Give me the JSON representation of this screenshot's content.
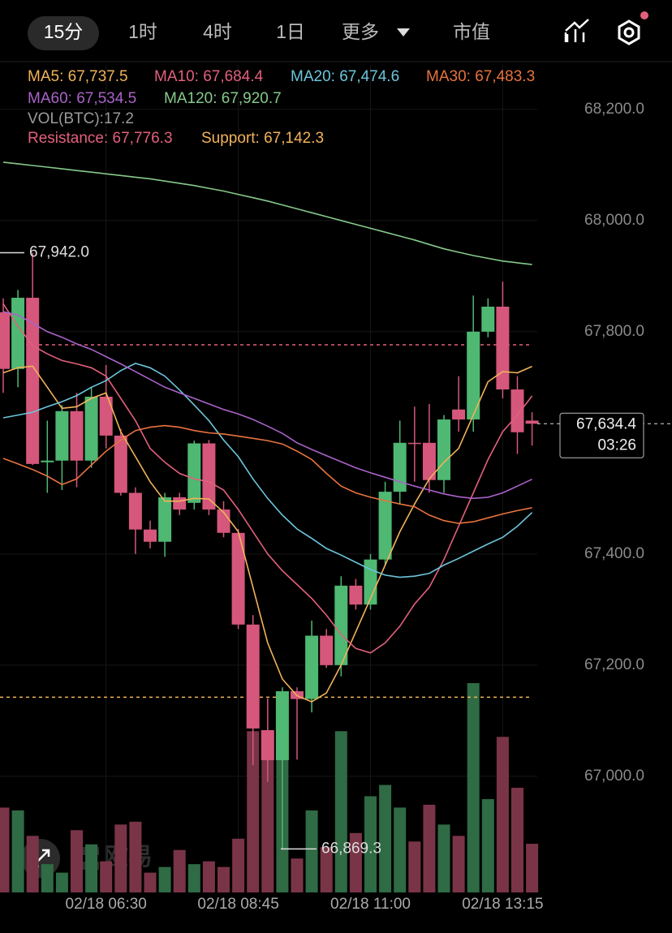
{
  "tabs": [
    {
      "label": "15分",
      "selected": true
    },
    {
      "label": "1时",
      "selected": false
    },
    {
      "label": "4时",
      "selected": false
    },
    {
      "label": "1日",
      "selected": false
    },
    {
      "label": "更多",
      "selected": false
    },
    {
      "label": "市值",
      "selected": false
    }
  ],
  "watermark": "欧易",
  "chart_data": {
    "type": "candlestick",
    "categories": [
      null,
      null,
      null,
      null,
      null,
      null,
      null,
      "02/18 06:30",
      null,
      null,
      null,
      null,
      null,
      null,
      null,
      null,
      "02/18 08:45",
      null,
      null,
      null,
      null,
      null,
      null,
      null,
      null,
      "02/18 11:00",
      null,
      null,
      null,
      null,
      null,
      null,
      null,
      null,
      "02/18 13:15",
      null,
      null
    ],
    "open": [
      67835,
      67733,
      67861,
      67565,
      67568,
      67657,
      67568,
      67683,
      67613,
      67510,
      67444,
      67422,
      67502,
      67492,
      67599,
      67480,
      67438,
      67273,
      67083,
      67029,
      67153,
      67139,
      67253,
      67200,
      67343,
      67309,
      67390,
      67512,
      67600,
      67600,
      67533,
      67660,
      67642,
      67800,
      67845,
      67696,
      67640
    ],
    "high": [
      67860,
      67875,
      67942,
      67640,
      67668,
      67690,
      67700,
      67740,
      67625,
      67520,
      67460,
      67510,
      67510,
      67604,
      67605,
      67495,
      67445,
      67290,
      67140,
      67160,
      67160,
      67280,
      67265,
      67360,
      67355,
      67400,
      67530,
      67640,
      67665,
      67670,
      67650,
      67720,
      67865,
      67860,
      67890,
      67720,
      67655
    ],
    "low": [
      67690,
      67700,
      67560,
      67510,
      67515,
      67520,
      67555,
      67590,
      67505,
      67400,
      67410,
      67395,
      67470,
      67480,
      67470,
      67430,
      67265,
      67020,
      66990,
      66869.3,
      67030,
      67115,
      67195,
      67180,
      67300,
      67300,
      67380,
      67490,
      67530,
      67510,
      67510,
      67620,
      67620,
      67790,
      67680,
      67580,
      67595
    ],
    "close": [
      67733,
      67861,
      67562,
      67568,
      67657,
      67568,
      67683,
      67613,
      67510,
      67444,
      67422,
      67502,
      67480,
      67599,
      67480,
      67438,
      67273,
      67086,
      67029,
      67153,
      67139,
      67253,
      67200,
      67343,
      67309,
      67390,
      67512,
      67600,
      67598,
      67533,
      67642,
      67642,
      67800,
      67845,
      67696,
      67619,
      67634.4
    ],
    "up_color": "#4fb872",
    "down_color": "#d5577b",
    "volume": {
      "label": "VOL(BTC):17.2",
      "values": [
        30,
        29,
        20,
        10,
        7,
        22,
        17,
        11,
        24,
        25,
        7,
        9,
        15,
        10,
        11,
        9,
        19,
        57,
        57,
        47,
        12,
        29,
        16,
        57,
        21,
        34,
        38,
        30,
        18,
        31,
        24,
        20,
        74,
        33,
        55,
        37,
        17.2
      ],
      "up_color": "#2f6b44",
      "down_color": "#7a3448"
    },
    "series": [
      {
        "label": "MA5: 67,737.5",
        "color": "#f2b35a",
        "values": [
          67726,
          67735,
          67738,
          67700,
          67662,
          67665,
          67680,
          67690,
          67620,
          67575,
          67530,
          67495,
          67495,
          67500,
          67499,
          67475,
          67440,
          67340,
          67240,
          67175,
          67145,
          67134,
          67150,
          67200,
          67260,
          67320,
          67380,
          67440,
          67490,
          67535,
          67565,
          67590,
          67650,
          67710,
          67728,
          67726,
          67737.5
        ]
      },
      {
        "label": "MA10: 67,684.4",
        "color": "#e2607c",
        "values": [
          67850,
          67810,
          67775,
          67760,
          67748,
          67742,
          67735,
          67720,
          67680,
          67640,
          67590,
          67565,
          67545,
          67535,
          67530,
          67515,
          67480,
          67440,
          67400,
          67370,
          67345,
          67320,
          67290,
          67255,
          67230,
          67222,
          67240,
          67270,
          67310,
          67340,
          67390,
          67450,
          67510,
          67570,
          67620,
          67650,
          67684.4
        ]
      },
      {
        "label": "MA20: 67,474.6",
        "color": "#6cc6dc",
        "values": [
          67645,
          67650,
          67655,
          67665,
          67674,
          67685,
          67700,
          67712,
          67730,
          67743,
          67735,
          67720,
          67695,
          67668,
          67640,
          67605,
          67575,
          67535,
          67500,
          67470,
          67445,
          67428,
          67410,
          67398,
          67385,
          67372,
          67362,
          67358,
          67360,
          67365,
          67380,
          67392,
          67405,
          67418,
          67430,
          67450,
          67474.6
        ]
      },
      {
        "label": "MA30: 67,483.3",
        "color": "#e8733e",
        "values": [
          67572,
          67562,
          67552,
          67540,
          67525,
          67535,
          67560,
          67585,
          67605,
          67622,
          67628,
          67631,
          67628,
          67622,
          67618,
          67616,
          67612,
          67608,
          67604,
          67598,
          67585,
          67570,
          67545,
          67522,
          67510,
          67502,
          67496,
          67490,
          67485,
          67470,
          67460,
          67455,
          67458,
          67465,
          67472,
          67478,
          67483.3
        ]
      },
      {
        "label": "MA60: 67,534.5",
        "color": "#a963c9",
        "values": [
          67836,
          67830,
          67815,
          67800,
          67790,
          67778,
          67768,
          67755,
          67742,
          67728,
          67714,
          67700,
          67690,
          67680,
          67670,
          67660,
          67652,
          67642,
          67630,
          67617,
          67600,
          67588,
          67577,
          67566,
          67555,
          67546,
          67538,
          67530,
          67522,
          67515,
          67508,
          67503,
          67500,
          67502,
          67510,
          67522,
          67534.5
        ]
      },
      {
        "label": "MA120: 67,920.7",
        "color": "#86c98a",
        "values": [
          68105,
          68102,
          68099,
          68096,
          68093,
          68090,
          68087,
          68084,
          68081,
          68078,
          68075,
          68071,
          68067,
          68063,
          68058,
          68053,
          68047,
          68041,
          68035,
          68028,
          68021,
          68014,
          68007,
          68000,
          67993,
          67986,
          67979,
          67972,
          67965,
          67957,
          67949,
          67943,
          67937,
          67932,
          67927,
          67924,
          67920.7
        ]
      }
    ],
    "ylim": [
      66791,
      68280
    ],
    "yticks": [
      {
        "value": 67000,
        "label": "67,000.0"
      },
      {
        "value": 67200,
        "label": "67,200.0"
      },
      {
        "value": 67400,
        "label": "67,400.0"
      },
      {
        "value": 67800,
        "label": "67,800.0"
      },
      {
        "value": 68000,
        "label": "68,000.0"
      },
      {
        "value": 68200,
        "label": "68,200.0"
      }
    ],
    "grid": true,
    "resistance": {
      "value": 67776.3,
      "label": "Resistance: 67,776.3",
      "color": "#e2607c"
    },
    "support": {
      "value": 67142.3,
      "label": "Support: 67,142.3",
      "color": "#f2b35a"
    },
    "max_marker": {
      "value": 67942.0,
      "label": "67,942.0"
    },
    "min_marker": {
      "value": 66869.3,
      "label": "66,869.3"
    },
    "last_price": {
      "value": 67634.4,
      "label": "67,634.4",
      "countdown": "03:26"
    }
  }
}
